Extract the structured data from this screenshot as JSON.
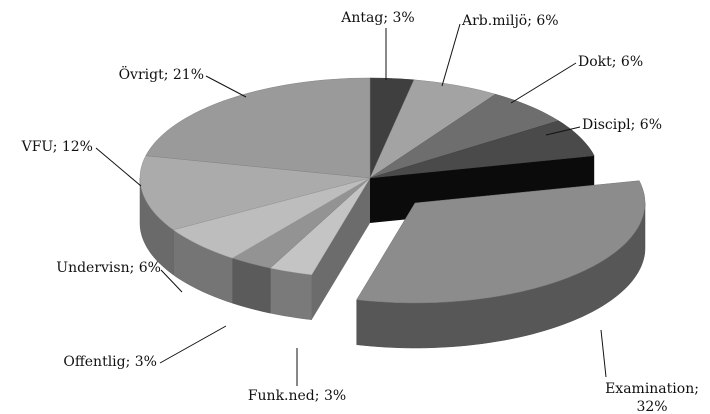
{
  "chart_data": {
    "type": "pie",
    "values": [
      3,
      6,
      6,
      6,
      32,
      3,
      3,
      6,
      12,
      21
    ],
    "value_labels": [
      "Antag; 3%",
      "Arb.miljö; 6%",
      "Dokt; 6%",
      "Discipl; 6%",
      "Examination; 32%",
      "Funk.ned; 3%",
      "Offentlig; 3%",
      "Undervisn; 6%",
      "VFU; 12%",
      "Övrigt; 21%"
    ],
    "colors": [
      "#3f3f3f",
      "#a3a3a3",
      "#6e6e6e",
      "#4a4a4a",
      "#8c8c8c",
      "#c4c4c4",
      "#939393",
      "#bdbdbd",
      "#ababab",
      "#9a9a9a"
    ],
    "exploded": [
      4
    ]
  }
}
